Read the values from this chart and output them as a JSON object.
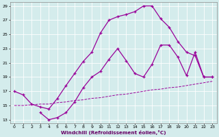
{
  "xlabel": "Windchill (Refroidissement éolien,°C)",
  "bg_color": "#d4ecec",
  "line_color": "#990099",
  "xmin": 0,
  "xmax": 23,
  "ymin": 13,
  "ymax": 29,
  "yticks": [
    13,
    15,
    17,
    19,
    21,
    23,
    25,
    27,
    29
  ],
  "xticks": [
    0,
    1,
    2,
    3,
    4,
    5,
    6,
    7,
    8,
    9,
    10,
    11,
    12,
    13,
    14,
    15,
    16,
    17,
    18,
    19,
    20,
    21,
    22,
    23
  ],
  "line1_x": [
    0,
    1,
    2,
    3,
    4,
    5,
    6,
    7,
    8,
    9,
    10,
    11,
    12,
    13,
    14,
    15,
    16,
    17,
    18,
    19,
    20,
    21,
    22,
    23
  ],
  "line1_y": [
    17.0,
    16.5,
    15.2,
    14.8,
    14.5,
    16.0,
    17.8,
    19.5,
    21.2,
    22.5,
    25.2,
    27.0,
    27.5,
    27.8,
    28.2,
    29.0,
    29.0,
    27.2,
    26.0,
    24.0,
    22.5,
    22.0,
    19.0,
    19.0
  ],
  "line2_x": [
    3,
    4,
    5,
    6,
    7,
    8,
    9,
    10,
    11,
    12,
    13,
    14,
    15,
    16,
    17,
    18,
    19,
    20,
    21,
    22,
    23
  ],
  "line2_y": [
    14.0,
    13.0,
    13.3,
    14.0,
    15.5,
    17.5,
    19.0,
    19.8,
    21.5,
    23.0,
    21.3,
    19.5,
    19.0,
    20.8,
    23.5,
    23.5,
    21.8,
    19.2,
    22.5,
    19.0,
    19.0
  ],
  "line3_x": [
    0,
    1,
    2,
    3,
    4,
    5,
    6,
    7,
    8,
    9,
    10,
    11,
    12,
    13,
    14,
    15,
    16,
    17,
    18,
    19,
    20,
    21,
    22,
    23
  ],
  "line3_y": [
    15.0,
    15.0,
    15.1,
    15.2,
    15.2,
    15.4,
    15.5,
    15.7,
    15.8,
    16.0,
    16.1,
    16.3,
    16.5,
    16.6,
    16.8,
    17.0,
    17.2,
    17.3,
    17.5,
    17.6,
    17.8,
    18.0,
    18.2,
    18.4
  ]
}
